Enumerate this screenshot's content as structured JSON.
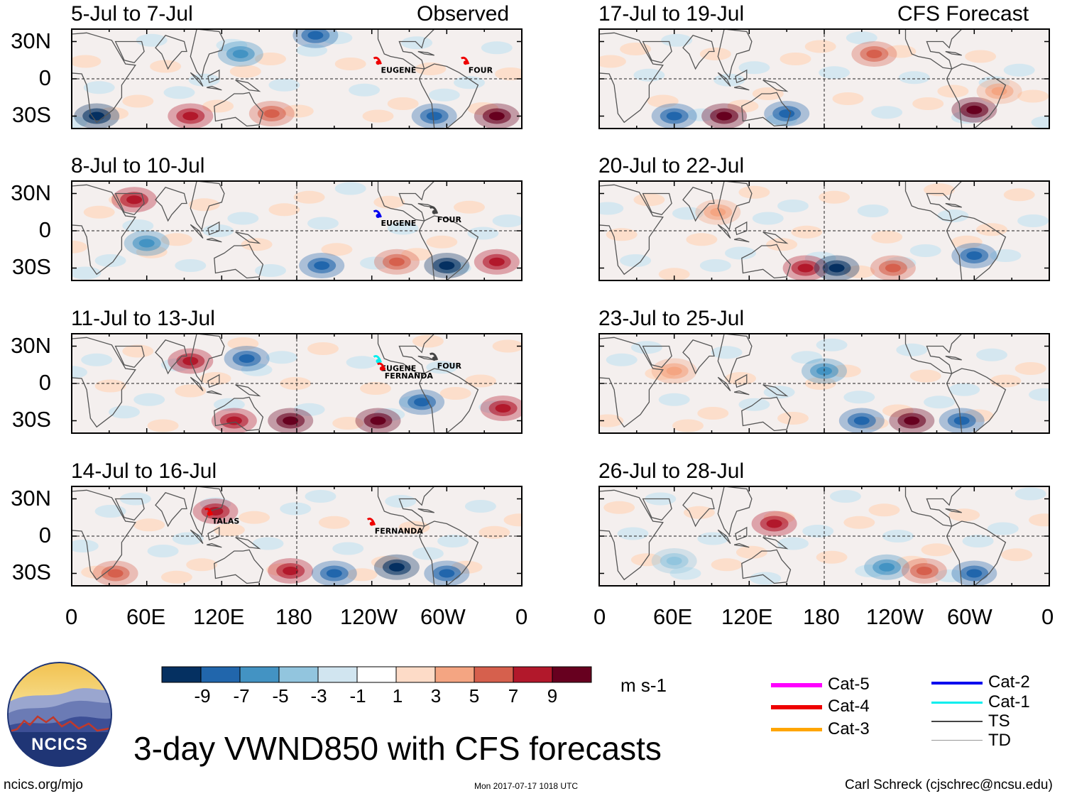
{
  "figure_title": "3-day VWND850 with CFS forecasts",
  "colors": {
    "frame": "#000000",
    "coast": "#555555",
    "dash": "#222222",
    "blue_deep": "#053061",
    "blue_mid": "#2c6fb0",
    "red_deep": "#67001f",
    "red_mid": "#c0392b"
  },
  "column_labels": {
    "left": "Observed",
    "right": "CFS Forecast"
  },
  "y_ticks": [
    "30N",
    "0",
    "30S"
  ],
  "x_ticks": [
    "0",
    "60E",
    "120E",
    "180",
    "120W",
    "60W",
    "0"
  ],
  "panels": [
    {
      "period": "5-Jul to 7-Jul",
      "source": "observed",
      "storms": [
        "EUGENE",
        "FOUR"
      ]
    },
    {
      "period": "8-Jul to 10-Jul",
      "source": "observed",
      "storms": [
        "EUGENE",
        "FOUR"
      ]
    },
    {
      "period": "11-Jul to 13-Jul",
      "source": "observed",
      "storms": [
        "EUGENE",
        "FOUR",
        "FERNANDA"
      ]
    },
    {
      "period": "14-Jul to 16-Jul",
      "source": "observed",
      "storms": [
        "TALAS",
        "FERNANDA"
      ]
    },
    {
      "period": "17-Jul to 19-Jul",
      "source": "forecast",
      "storms": []
    },
    {
      "period": "20-Jul to 22-Jul",
      "source": "forecast",
      "storms": []
    },
    {
      "period": "23-Jul to 25-Jul",
      "source": "forecast",
      "storms": []
    },
    {
      "period": "26-Jul to 28-Jul",
      "source": "forecast",
      "storms": []
    }
  ],
  "colorbar": {
    "units": "m s-1",
    "labels": [
      "-9",
      "-7",
      "-5",
      "-3",
      "-1",
      "1",
      "3",
      "5",
      "7",
      "9"
    ],
    "colors": [
      "#053061",
      "#2166ac",
      "#4393c3",
      "#92c5de",
      "#d1e5f0",
      "#ffffff",
      "#fddbc7",
      "#f4a582",
      "#d6604d",
      "#b2182b",
      "#67001f"
    ]
  },
  "legend": [
    {
      "label": "Cat-5",
      "color": "#ff00ff"
    },
    {
      "label": "Cat-4",
      "color": "#ee0000"
    },
    {
      "label": "Cat-3",
      "color": "#ffa500"
    },
    {
      "label": "Cat-2",
      "color": "#0000ee"
    },
    {
      "label": "Cat-1",
      "color": "#00eeee"
    },
    {
      "label": "TS",
      "color": "#444444"
    },
    {
      "label": "TD",
      "color": "#999999"
    }
  ],
  "logo_text": "NCICS",
  "footer": {
    "left": "ncics.org/mjo",
    "center": "Mon 2017-07-17 1018 UTC",
    "right": "Carl Schreck (cjschrec@ncsu.edu)"
  }
}
